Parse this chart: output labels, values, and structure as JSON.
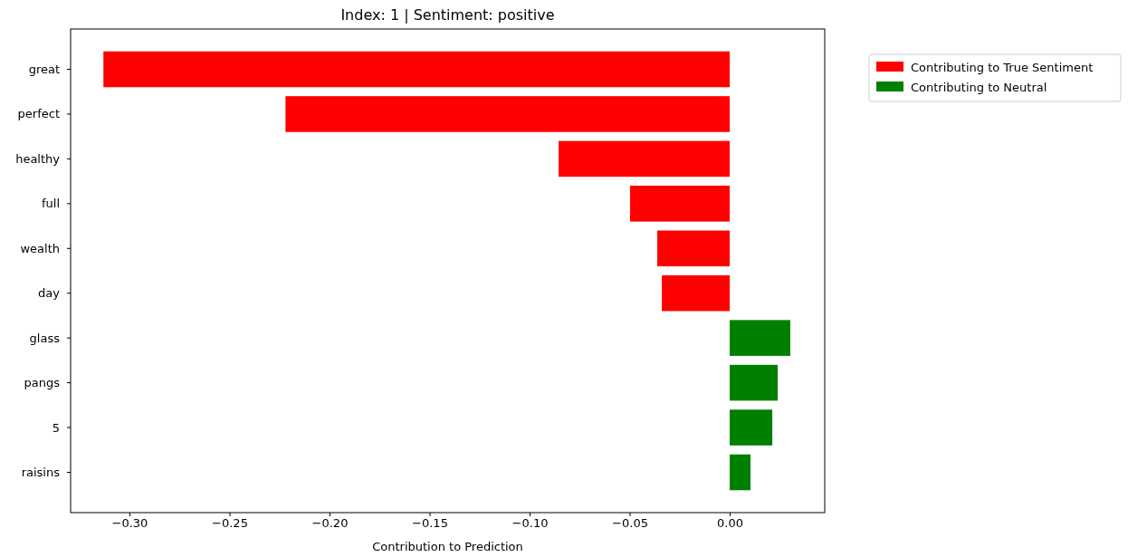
{
  "chart_data": {
    "type": "bar",
    "orientation": "horizontal",
    "title": "Index: 1 | Sentiment: positive",
    "xlabel": "Contribution to Prediction",
    "categories": [
      "great",
      "perfect",
      "healthy",
      "full",
      "wealth",
      "day",
      "glass",
      "pangs",
      "5",
      "raisins"
    ],
    "series": [
      {
        "name": "Contributing to True Sentiment",
        "color": "#ff0000",
        "values": [
          -0.313,
          -0.222,
          -0.0855,
          -0.0498,
          -0.0362,
          -0.0339,
          null,
          null,
          null,
          null
        ]
      },
      {
        "name": "Contributing to Neutral",
        "color": "#008000",
        "values": [
          null,
          null,
          null,
          null,
          null,
          null,
          0.0303,
          0.024,
          0.0213,
          0.0104
        ]
      }
    ],
    "xlim": [
      -0.3294,
      0.0475
    ],
    "xticks": [
      {
        "value": -0.3,
        "label": "−0.30"
      },
      {
        "value": -0.25,
        "label": "−0.25"
      },
      {
        "value": -0.2,
        "label": "−0.20"
      },
      {
        "value": -0.15,
        "label": "−0.15"
      },
      {
        "value": -0.1,
        "label": "−0.10"
      },
      {
        "value": -0.05,
        "label": "−0.05"
      },
      {
        "value": 0,
        "label": "0.00"
      }
    ],
    "grid": false,
    "legend": "top right"
  }
}
